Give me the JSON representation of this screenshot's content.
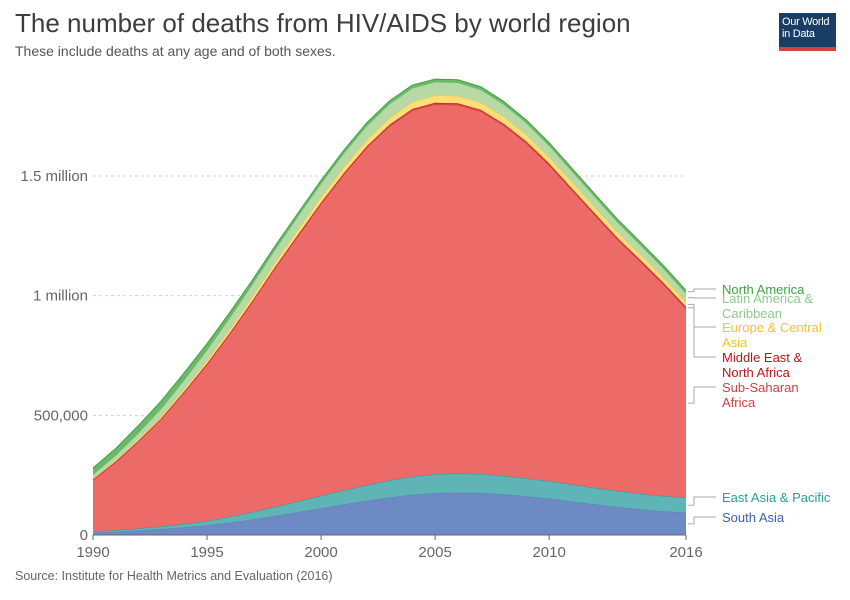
{
  "header": {
    "title": "The number of deaths from HIV/AIDS by world region",
    "subtitle": "These include deaths at any age and of both sexes."
  },
  "logo": {
    "line1": "Our World",
    "line2": "in Data"
  },
  "source": "Source: Institute for Health Metrics and Evaluation (2016)",
  "chart_data": {
    "type": "area",
    "stacked": true,
    "title": "The number of deaths from HIV/AIDS by world region",
    "subtitle": "These include deaths at any age and of both sexes.",
    "xlabel": "",
    "ylabel": "",
    "xlim": [
      1990,
      2016
    ],
    "ylim": [
      0,
      1800000
    ],
    "grid": "horizontal dashed",
    "legend_placement": "right, labels at series ends",
    "x": [
      1990,
      1991,
      1992,
      1993,
      1994,
      1995,
      1996,
      1997,
      1998,
      1999,
      2000,
      2001,
      2002,
      2003,
      2004,
      2005,
      2006,
      2007,
      2008,
      2009,
      2010,
      2011,
      2012,
      2013,
      2014,
      2015,
      2016
    ],
    "x_ticks": [
      1990,
      1995,
      2000,
      2005,
      2010,
      2016
    ],
    "y_ticks": [
      {
        "value": 0,
        "label": "0"
      },
      {
        "value": 500000,
        "label": "500,000"
      },
      {
        "value": 1000000,
        "label": "1 million"
      },
      {
        "value": 1500000,
        "label": "1.5 million"
      }
    ],
    "series": [
      {
        "name": "South Asia",
        "color": "#5b7ebd",
        "fill": "#6d8ac4",
        "values": [
          10000,
          14000,
          19000,
          25000,
          32000,
          40000,
          52000,
          65000,
          80000,
          96000,
          112000,
          128000,
          143000,
          157000,
          168000,
          175000,
          177000,
          176000,
          170000,
          162000,
          152000,
          140000,
          128000,
          117000,
          107000,
          99000,
          93000
        ]
      },
      {
        "name": "East Asia & Pacific",
        "color": "#2a9d9f",
        "fill": "#5fb4b6",
        "values": [
          5000,
          6000,
          8000,
          11000,
          14000,
          18000,
          24000,
          31000,
          38000,
          45000,
          52000,
          59000,
          65000,
          71000,
          76000,
          79000,
          80000,
          79000,
          77000,
          75000,
          73000,
          71000,
          69000,
          67000,
          65000,
          64000,
          63000
        ]
      },
      {
        "name": "Sub-Saharan Africa",
        "color": "#d73c3c",
        "fill": "#ec6a68",
        "values": [
          215000,
          285000,
          365000,
          450000,
          550000,
          655000,
          765000,
          880000,
          1000000,
          1110000,
          1220000,
          1320000,
          1410000,
          1480000,
          1530000,
          1545000,
          1540000,
          1515000,
          1465000,
          1400000,
          1320000,
          1230000,
          1140000,
          1050000,
          970000,
          885000,
          790000
        ]
      },
      {
        "name": "Middle East & North Africa",
        "color": "#b8161a",
        "fill": "#d94a3d",
        "values": [
          2000,
          2000,
          2000,
          2000,
          3000,
          3000,
          3000,
          4000,
          4000,
          5000,
          5000,
          5000,
          6000,
          6000,
          6000,
          7000,
          7000,
          7000,
          7000,
          7000,
          7000,
          7000,
          7000,
          7000,
          7000,
          7000,
          7000
        ]
      },
      {
        "name": "Europe & Central Asia",
        "color": "#fccb42",
        "fill": "#fcde7a",
        "values": [
          3000,
          4000,
          5000,
          7000,
          9000,
          12000,
          14000,
          16000,
          18000,
          20000,
          22000,
          24000,
          26000,
          28000,
          29000,
          30000,
          30000,
          30000,
          29000,
          28000,
          27000,
          26000,
          25000,
          24000,
          23000,
          22000,
          21000
        ]
      },
      {
        "name": "Latin America & Caribbean",
        "color": "#7fc17f",
        "fill": "#b6d9a6",
        "values": [
          18000,
          22000,
          28000,
          34000,
          40000,
          45000,
          50000,
          53000,
          55000,
          57000,
          58000,
          59000,
          59000,
          59000,
          58000,
          57000,
          56000,
          54000,
          52000,
          50000,
          48000,
          46000,
          44000,
          42000,
          40000,
          38000,
          36000
        ]
      },
      {
        "name": "North America",
        "color": "#3fa33f",
        "fill": "#6ab86a",
        "values": [
          27000,
          29000,
          31000,
          32000,
          30000,
          27000,
          22000,
          18000,
          15000,
          14000,
          13000,
          13000,
          13000,
          13000,
          13000,
          12000,
          12000,
          12000,
          12000,
          12000,
          12000,
          12000,
          12000,
          12000,
          12000,
          12000,
          12000
        ]
      }
    ],
    "legend": [
      {
        "lines": [
          "North America"
        ],
        "color": "#3fa33f"
      },
      {
        "lines": [
          "Latin America &",
          "Caribbean"
        ],
        "color": "#8fc98f"
      },
      {
        "lines": [
          "Europe & Central",
          "Asia"
        ],
        "color": "#f5c132"
      },
      {
        "lines": [
          "Middle East &",
          "North Africa"
        ],
        "color": "#b8161a"
      },
      {
        "lines": [
          "Sub-Saharan",
          "Africa"
        ],
        "color": "#d73c3c"
      },
      {
        "lines": [
          "East Asia & Pacific"
        ],
        "color": "#2a9d9f"
      },
      {
        "lines": [
          "South Asia"
        ],
        "color": "#3d5fa8"
      }
    ]
  }
}
